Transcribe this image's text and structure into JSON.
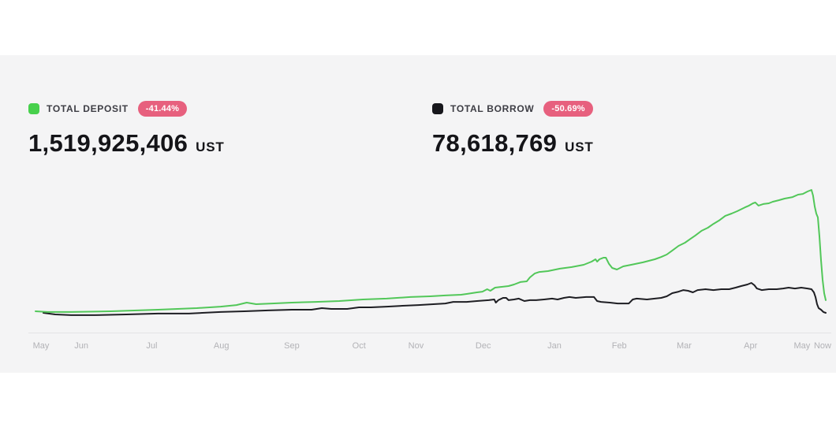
{
  "page": {
    "background": "#ffffff",
    "panel_background": "#f4f4f5",
    "axis_line_color": "#e3e3e5",
    "x_label_color": "#b2b2b6"
  },
  "stats": [
    {
      "label": "TOTAL DEPOSIT",
      "change_badge": "-41.44%",
      "value": "1,519,925,406",
      "unit": "UST",
      "swatch_color": "#47d04c",
      "badge_color": "#e7607e"
    },
    {
      "label": "TOTAL BORROW",
      "change_badge": "-50.69%",
      "value": "78,618,769",
      "unit": "UST",
      "swatch_color": "#17171c",
      "badge_color": "#e7607e"
    }
  ],
  "chart_data": {
    "type": "line",
    "title": "",
    "xlabel": "",
    "ylabel": "",
    "y_axis_visible": false,
    "grid": false,
    "legend_position": "top",
    "note": "No y-axis ticks shown in source; point values are percent of plot height above the baseline (deposit peak = 100). x is percent across the time window May -> Now.",
    "x_labels": [
      "May",
      "Jun",
      "Jul",
      "Aug",
      "Sep",
      "Oct",
      "Nov",
      "Dec",
      "Jan",
      "Feb",
      "Mar",
      "Apr",
      "May",
      "Now"
    ],
    "x_label_positions_pct": [
      0.7,
      5.8,
      14.7,
      23.5,
      32.4,
      40.9,
      48.1,
      56.6,
      65.6,
      73.8,
      82.0,
      90.4,
      96.9,
      99.5
    ],
    "series": [
      {
        "name": "Total Deposit",
        "color": "#52c759",
        "stroke_width": 2,
        "current_value_ust": "1,519,925,406",
        "change_pct": -41.44,
        "points": [
          [
            0.0,
            14.9
          ],
          [
            1.5,
            14.4
          ],
          [
            4.5,
            14.4
          ],
          [
            9.5,
            14.9
          ],
          [
            15.5,
            16.0
          ],
          [
            20.4,
            17.1
          ],
          [
            23.4,
            18.2
          ],
          [
            25.4,
            19.3
          ],
          [
            26.7,
            21.0
          ],
          [
            27.9,
            19.9
          ],
          [
            29.9,
            20.4
          ],
          [
            32.4,
            21.0
          ],
          [
            35.4,
            21.5
          ],
          [
            38.4,
            22.1
          ],
          [
            41.4,
            23.2
          ],
          [
            44.4,
            23.8
          ],
          [
            47.4,
            24.9
          ],
          [
            49.9,
            25.4
          ],
          [
            51.8,
            26.0
          ],
          [
            53.8,
            26.5
          ],
          [
            54.6,
            27.1
          ],
          [
            55.8,
            28.2
          ],
          [
            56.5,
            28.7
          ],
          [
            57.1,
            30.4
          ],
          [
            57.5,
            29.3
          ],
          [
            58.1,
            31.5
          ],
          [
            58.8,
            32.0
          ],
          [
            59.8,
            32.6
          ],
          [
            60.5,
            33.7
          ],
          [
            61.3,
            35.4
          ],
          [
            62.1,
            35.9
          ],
          [
            62.5,
            38.7
          ],
          [
            63.1,
            41.4
          ],
          [
            63.7,
            42.5
          ],
          [
            64.8,
            43.1
          ],
          [
            66.3,
            44.8
          ],
          [
            67.8,
            45.9
          ],
          [
            69.3,
            47.5
          ],
          [
            70.3,
            49.7
          ],
          [
            70.8,
            51.4
          ],
          [
            71.0,
            49.7
          ],
          [
            71.3,
            51.4
          ],
          [
            71.8,
            52.5
          ],
          [
            72.1,
            52.5
          ],
          [
            72.5,
            48.1
          ],
          [
            72.9,
            45.3
          ],
          [
            73.5,
            44.2
          ],
          [
            74.3,
            46.4
          ],
          [
            75.3,
            47.5
          ],
          [
            76.8,
            49.2
          ],
          [
            78.3,
            51.4
          ],
          [
            79.1,
            53.0
          ],
          [
            79.8,
            54.7
          ],
          [
            80.5,
            57.5
          ],
          [
            81.3,
            60.8
          ],
          [
            82.1,
            63.0
          ],
          [
            82.8,
            65.7
          ],
          [
            83.4,
            68.0
          ],
          [
            84.2,
            71.3
          ],
          [
            85.0,
            73.5
          ],
          [
            85.7,
            76.2
          ],
          [
            86.4,
            78.5
          ],
          [
            87.2,
            81.8
          ],
          [
            88.0,
            83.4
          ],
          [
            88.7,
            85.1
          ],
          [
            89.7,
            87.8
          ],
          [
            90.2,
            89.0
          ],
          [
            90.7,
            90.6
          ],
          [
            91.0,
            91.2
          ],
          [
            91.4,
            89.0
          ],
          [
            92.0,
            90.1
          ],
          [
            92.7,
            90.6
          ],
          [
            93.2,
            91.7
          ],
          [
            94.0,
            92.8
          ],
          [
            94.7,
            93.9
          ],
          [
            95.7,
            95.0
          ],
          [
            96.4,
            96.7
          ],
          [
            97.0,
            97.2
          ],
          [
            97.6,
            98.9
          ],
          [
            98.1,
            100.0
          ],
          [
            98.3,
            96.1
          ],
          [
            98.5,
            88.4
          ],
          [
            98.7,
            83.4
          ],
          [
            98.9,
            80.7
          ],
          [
            99.1,
            67.4
          ],
          [
            99.3,
            50.8
          ],
          [
            99.5,
            37.0
          ],
          [
            99.7,
            27.6
          ],
          [
            99.9,
            22.7
          ]
        ]
      },
      {
        "name": "Total Borrow",
        "color": "#1e1e23",
        "stroke_width": 2,
        "current_value_ust": "78,618,769",
        "change_pct": -50.69,
        "points": [
          [
            1.0,
            13.8
          ],
          [
            2.5,
            12.7
          ],
          [
            4.5,
            12.2
          ],
          [
            7.5,
            12.2
          ],
          [
            11.5,
            12.7
          ],
          [
            15.5,
            13.3
          ],
          [
            19.4,
            13.3
          ],
          [
            23.4,
            14.4
          ],
          [
            26.4,
            14.9
          ],
          [
            29.4,
            15.5
          ],
          [
            32.4,
            16.0
          ],
          [
            34.9,
            16.0
          ],
          [
            36.2,
            17.1
          ],
          [
            37.4,
            16.6
          ],
          [
            39.4,
            16.6
          ],
          [
            40.9,
            17.7
          ],
          [
            42.4,
            17.7
          ],
          [
            44.4,
            18.2
          ],
          [
            46.4,
            18.8
          ],
          [
            48.4,
            19.3
          ],
          [
            50.3,
            19.9
          ],
          [
            51.8,
            20.4
          ],
          [
            52.8,
            21.5
          ],
          [
            54.5,
            21.5
          ],
          [
            55.8,
            22.1
          ],
          [
            57.3,
            22.7
          ],
          [
            58.0,
            23.2
          ],
          [
            58.2,
            21.0
          ],
          [
            58.5,
            22.7
          ],
          [
            59.1,
            24.3
          ],
          [
            59.5,
            24.3
          ],
          [
            59.8,
            22.7
          ],
          [
            60.5,
            23.2
          ],
          [
            61.1,
            23.8
          ],
          [
            61.8,
            22.1
          ],
          [
            62.5,
            22.7
          ],
          [
            63.3,
            22.7
          ],
          [
            64.3,
            23.2
          ],
          [
            65.3,
            23.8
          ],
          [
            66.0,
            23.2
          ],
          [
            66.8,
            24.3
          ],
          [
            67.5,
            24.9
          ],
          [
            68.3,
            24.3
          ],
          [
            69.6,
            24.9
          ],
          [
            70.6,
            24.9
          ],
          [
            71.0,
            22.1
          ],
          [
            71.5,
            21.5
          ],
          [
            72.6,
            21.0
          ],
          [
            73.6,
            20.4
          ],
          [
            75.0,
            20.4
          ],
          [
            75.5,
            23.2
          ],
          [
            76.0,
            23.8
          ],
          [
            77.3,
            23.2
          ],
          [
            78.3,
            23.8
          ],
          [
            79.1,
            24.3
          ],
          [
            79.8,
            25.4
          ],
          [
            80.5,
            27.6
          ],
          [
            81.3,
            28.7
          ],
          [
            81.9,
            29.8
          ],
          [
            82.5,
            29.3
          ],
          [
            83.1,
            28.2
          ],
          [
            83.7,
            29.8
          ],
          [
            84.7,
            30.4
          ],
          [
            85.7,
            29.8
          ],
          [
            86.7,
            30.4
          ],
          [
            87.7,
            30.4
          ],
          [
            88.5,
            31.5
          ],
          [
            89.2,
            32.6
          ],
          [
            90.0,
            33.7
          ],
          [
            90.5,
            34.8
          ],
          [
            90.9,
            33.1
          ],
          [
            91.2,
            30.9
          ],
          [
            91.8,
            29.8
          ],
          [
            92.7,
            30.4
          ],
          [
            93.7,
            30.4
          ],
          [
            94.5,
            30.9
          ],
          [
            95.2,
            31.5
          ],
          [
            96.0,
            30.9
          ],
          [
            96.8,
            31.5
          ],
          [
            97.6,
            30.9
          ],
          [
            98.1,
            30.4
          ],
          [
            98.4,
            28.2
          ],
          [
            98.6,
            24.9
          ],
          [
            98.8,
            19.9
          ],
          [
            99.0,
            17.1
          ],
          [
            99.3,
            16.0
          ],
          [
            99.6,
            14.4
          ],
          [
            99.9,
            13.8
          ]
        ]
      }
    ]
  }
}
